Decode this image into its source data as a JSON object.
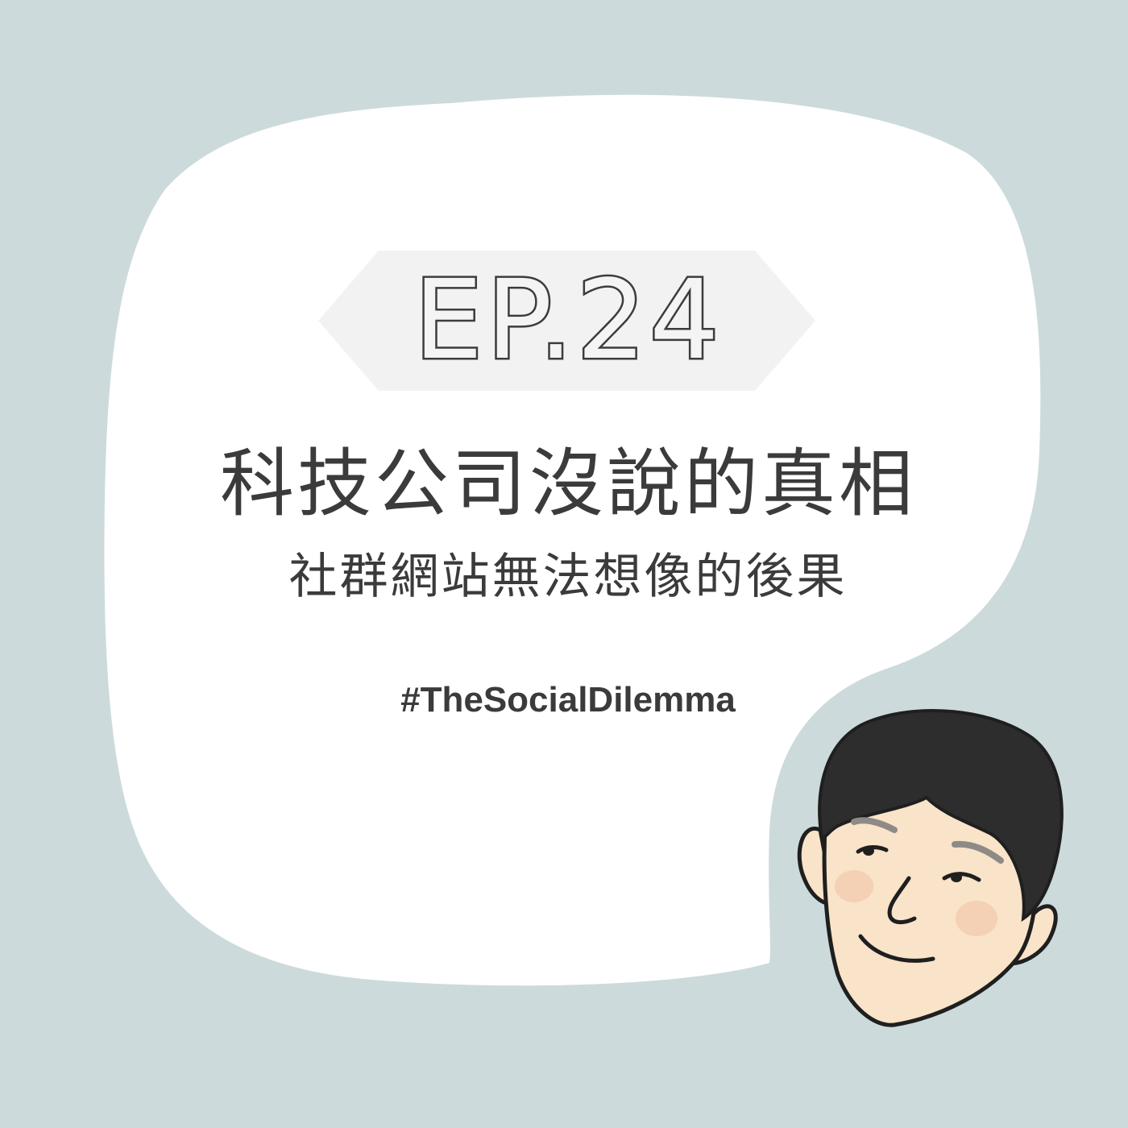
{
  "episode": {
    "label": "EP.24"
  },
  "title": {
    "main": "科技公司沒說的真相",
    "subtitle": "社群網站無法想像的後果"
  },
  "hashtag": "#TheSocialDilemma",
  "colors": {
    "background": "#cddadb",
    "bubble": "#ffffff",
    "badge": "#f2f2f2",
    "text": "#3b3b3b",
    "skin": "#f9e3c9",
    "hair": "#2d2d2d",
    "blush": "#f3cdb0"
  },
  "icons": {
    "avatar": "cartoon-man-face-icon"
  }
}
